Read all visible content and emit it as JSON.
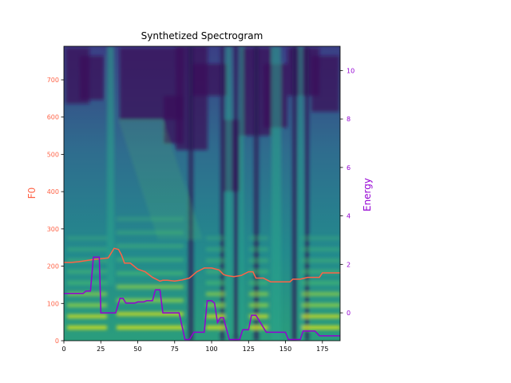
{
  "chart_data": {
    "type": "heatmap",
    "title": "Synthetized Spectrogram",
    "xlabel": "",
    "ylabel_left": "F0",
    "ylabel_right": "Energy",
    "xlim": [
      0,
      187
    ],
    "ylim_left": [
      0,
      790
    ],
    "ylim_right": [
      -1.15,
      11.0
    ],
    "xticks": [
      "0",
      "25",
      "50",
      "75",
      "100",
      "125",
      "150",
      "175"
    ],
    "yticks_left": [
      "0",
      "100",
      "200",
      "300",
      "400",
      "500",
      "600",
      "700"
    ],
    "yticks_right": [
      "0",
      "2",
      "4",
      "6",
      "8",
      "10"
    ],
    "grid": false,
    "colors": {
      "f0": "#ff6347",
      "energy": "#9400d3",
      "left_axis": "#ff6347",
      "right_axis": "#9400d3"
    },
    "colormap": "viridis",
    "series": [
      {
        "axis": "left",
        "x": [
          0,
          5,
          10,
          15,
          20,
          25,
          30,
          34,
          37,
          39,
          41,
          45,
          50,
          55,
          60,
          65,
          67,
          70,
          75,
          80,
          85,
          90,
          95,
          100,
          105,
          108,
          110,
          115,
          120,
          125,
          128,
          130,
          135,
          140,
          145,
          150,
          153,
          155,
          160,
          165,
          170,
          173,
          175,
          180,
          187
        ],
        "y": [
          210,
          210,
          212,
          215,
          218,
          220,
          222,
          248,
          245,
          230,
          208,
          208,
          192,
          185,
          170,
          160,
          162,
          162,
          160,
          163,
          168,
          185,
          195,
          195,
          190,
          178,
          175,
          172,
          175,
          185,
          185,
          168,
          168,
          158,
          158,
          158,
          158,
          165,
          165,
          170,
          170,
          170,
          182,
          182,
          182
        ]
      },
      {
        "axis": "right",
        "x": [
          0,
          5,
          10,
          13,
          15,
          18,
          20,
          22,
          24,
          25,
          27,
          30,
          35,
          38,
          40,
          42,
          45,
          48,
          50,
          54,
          56,
          60,
          62,
          65,
          67,
          70,
          75,
          78,
          82,
          85,
          88,
          95,
          97,
          100,
          102,
          104,
          106,
          108,
          112,
          115,
          119,
          121,
          125,
          127,
          130,
          137,
          140,
          145,
          150,
          152,
          155,
          160,
          162,
          165,
          170,
          173,
          175,
          180,
          187
        ],
        "y": [
          0.8,
          0.8,
          0.8,
          0.8,
          0.9,
          0.9,
          2.3,
          2.3,
          2.3,
          0.0,
          0.0,
          0.0,
          0.0,
          0.6,
          0.6,
          0.4,
          0.4,
          0.4,
          0.45,
          0.45,
          0.5,
          0.5,
          0.95,
          0.95,
          0.0,
          0.0,
          0.0,
          0.0,
          -1.1,
          -1.1,
          -0.8,
          -0.8,
          0.5,
          0.5,
          0.4,
          -0.4,
          -0.2,
          -0.2,
          -1.1,
          -1.1,
          -1.1,
          -0.7,
          -0.7,
          -0.1,
          -0.1,
          -0.8,
          -0.8,
          -0.8,
          -0.8,
          -1.1,
          -1.1,
          -1.1,
          -0.75,
          -0.75,
          -0.75,
          -0.95,
          -0.95,
          -0.95,
          -0.95
        ]
      }
    ]
  }
}
